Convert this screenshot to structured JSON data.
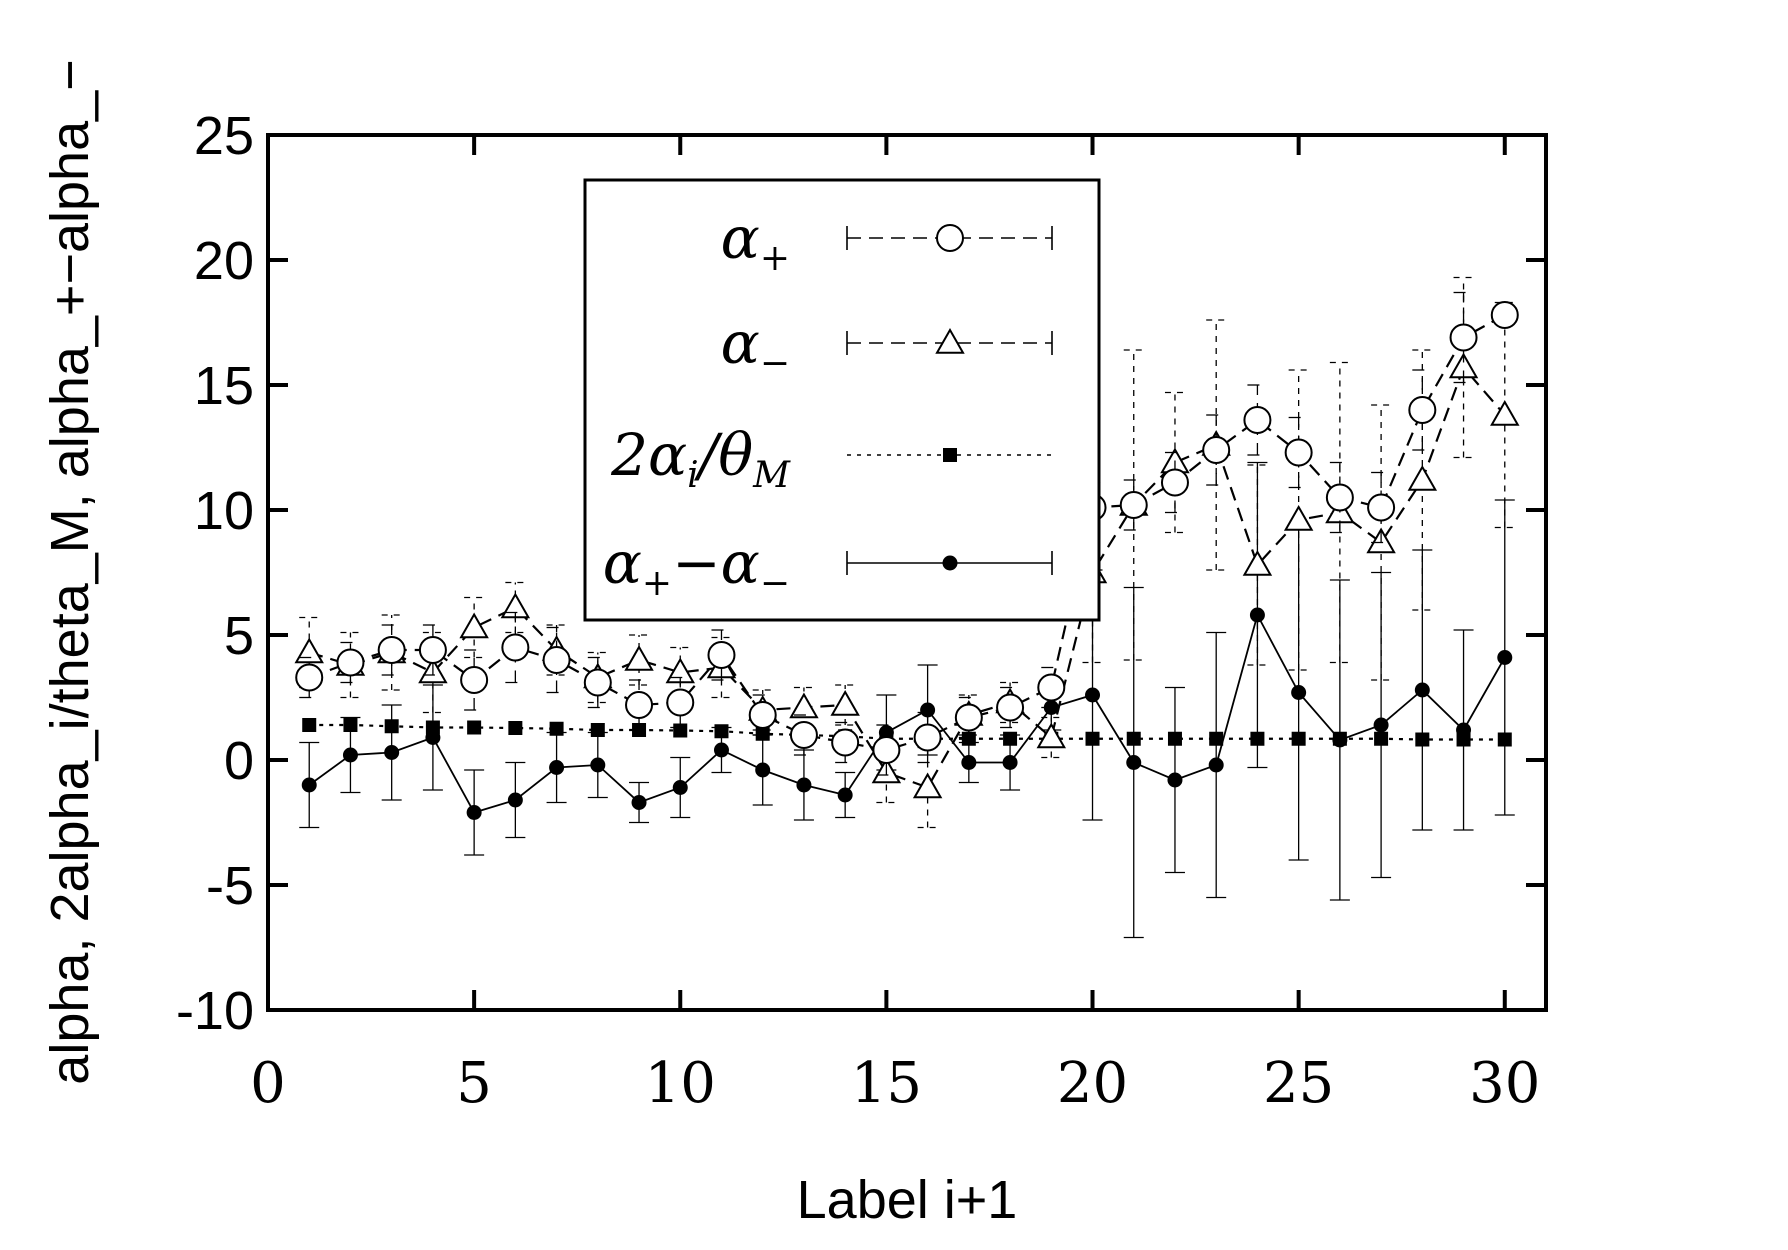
{
  "chart_data": {
    "type": "line",
    "title": "",
    "xlabel": "Label i+1",
    "ylabel": "alpha, 2alpha_i/theta_M, alpha_+−alpha_−",
    "xlim": [
      0,
      31
    ],
    "ylim": [
      -10,
      25
    ],
    "xticks": [
      0,
      5,
      10,
      15,
      20,
      25,
      30
    ],
    "yticks": [
      -10,
      -5,
      0,
      5,
      10,
      15,
      20,
      25
    ],
    "legend_position": "top-center",
    "x": [
      1,
      2,
      3,
      4,
      5,
      6,
      7,
      8,
      9,
      10,
      11,
      12,
      13,
      14,
      15,
      16,
      17,
      18,
      19,
      20,
      21,
      22,
      23,
      24,
      25,
      26,
      27,
      28,
      29,
      30
    ],
    "series": [
      {
        "name": "α+",
        "legend_main": "α",
        "legend_sub": "+",
        "marker": "circle-open",
        "line_style": "dashed",
        "values": [
          3.3,
          3.9,
          4.4,
          4.4,
          3.2,
          4.5,
          4.0,
          3.1,
          2.2,
          2.3,
          4.2,
          1.8,
          1.0,
          0.7,
          0.4,
          0.9,
          1.7,
          2.1,
          2.9,
          10.1,
          10.2,
          11.1,
          12.4,
          13.6,
          12.3,
          10.5,
          10.1,
          14.0,
          16.9,
          17.8
        ],
        "errors": [
          0.8,
          0.8,
          1.0,
          1.0,
          1.2,
          1.4,
          1.3,
          1.0,
          1.0,
          1.0,
          1.0,
          0.8,
          0.8,
          0.8,
          1.0,
          1.0,
          0.8,
          0.8,
          0.8,
          1.0,
          1.0,
          1.2,
          1.4,
          1.4,
          1.4,
          1.4,
          1.4,
          1.6,
          1.8,
          0.0
        ]
      },
      {
        "name": "α−",
        "legend_main": "α",
        "legend_sub": "−",
        "marker": "triangle-open",
        "line_style": "dashed",
        "values": [
          4.3,
          3.8,
          4.3,
          3.5,
          5.3,
          6.1,
          4.4,
          3.3,
          4.0,
          3.5,
          3.7,
          2.0,
          2.1,
          2.2,
          -0.5,
          -1.1,
          1.8,
          2.3,
          0.9,
          7.5,
          10.2,
          11.9,
          12.6,
          7.8,
          9.6,
          9.9,
          8.7,
          11.2,
          15.7,
          13.8
        ],
        "errors": [
          1.4,
          1.3,
          1.5,
          1.6,
          1.2,
          1.0,
          1.0,
          1.0,
          1.0,
          1.0,
          1.2,
          0.8,
          0.8,
          0.8,
          1.2,
          1.6,
          0.8,
          0.8,
          0.8,
          3.6,
          6.2,
          2.8,
          5.0,
          4.0,
          6.0,
          6.0,
          5.5,
          5.2,
          3.6,
          4.5
        ]
      },
      {
        "name": "2αi/θM",
        "legend_main": "2α",
        "legend_sub": "i",
        "legend_mid": "/θ",
        "legend_sub2": "M",
        "marker": "square-filled",
        "line_style": "dotted",
        "values": [
          1.4,
          1.4,
          1.35,
          1.3,
          1.3,
          1.28,
          1.25,
          1.2,
          1.2,
          1.18,
          1.15,
          1.05,
          1.0,
          0.95,
          0.85,
          0.85,
          0.85,
          0.85,
          0.85,
          0.85,
          0.85,
          0.85,
          0.85,
          0.85,
          0.85,
          0.85,
          0.85,
          0.82,
          0.82,
          0.82
        ],
        "errors": []
      },
      {
        "name": "α+−α−",
        "legend_main": "α",
        "legend_sub": "+",
        "legend_mid": "−α",
        "legend_sub2": "−",
        "marker": "circle-filled",
        "line_style": "solid",
        "values": [
          -1.0,
          0.2,
          0.3,
          0.9,
          -2.1,
          -1.6,
          -0.3,
          -0.2,
          -1.7,
          -1.1,
          0.4,
          -0.4,
          -1.0,
          -1.4,
          1.1,
          2.0,
          -0.1,
          -0.1,
          2.1,
          2.6,
          -0.1,
          -0.8,
          -0.2,
          5.8,
          2.7,
          0.8,
          1.4,
          2.8,
          1.2,
          4.1
        ],
        "errors": [
          1.7,
          1.5,
          1.9,
          2.1,
          1.7,
          1.5,
          1.4,
          1.3,
          0.8,
          1.2,
          0.9,
          1.4,
          1.4,
          0.9,
          1.5,
          1.8,
          0.8,
          1.1,
          0.9,
          5.0,
          7.0,
          3.7,
          5.3,
          6.1,
          6.7,
          6.4,
          6.1,
          5.6,
          4.0,
          6.3
        ]
      }
    ]
  }
}
